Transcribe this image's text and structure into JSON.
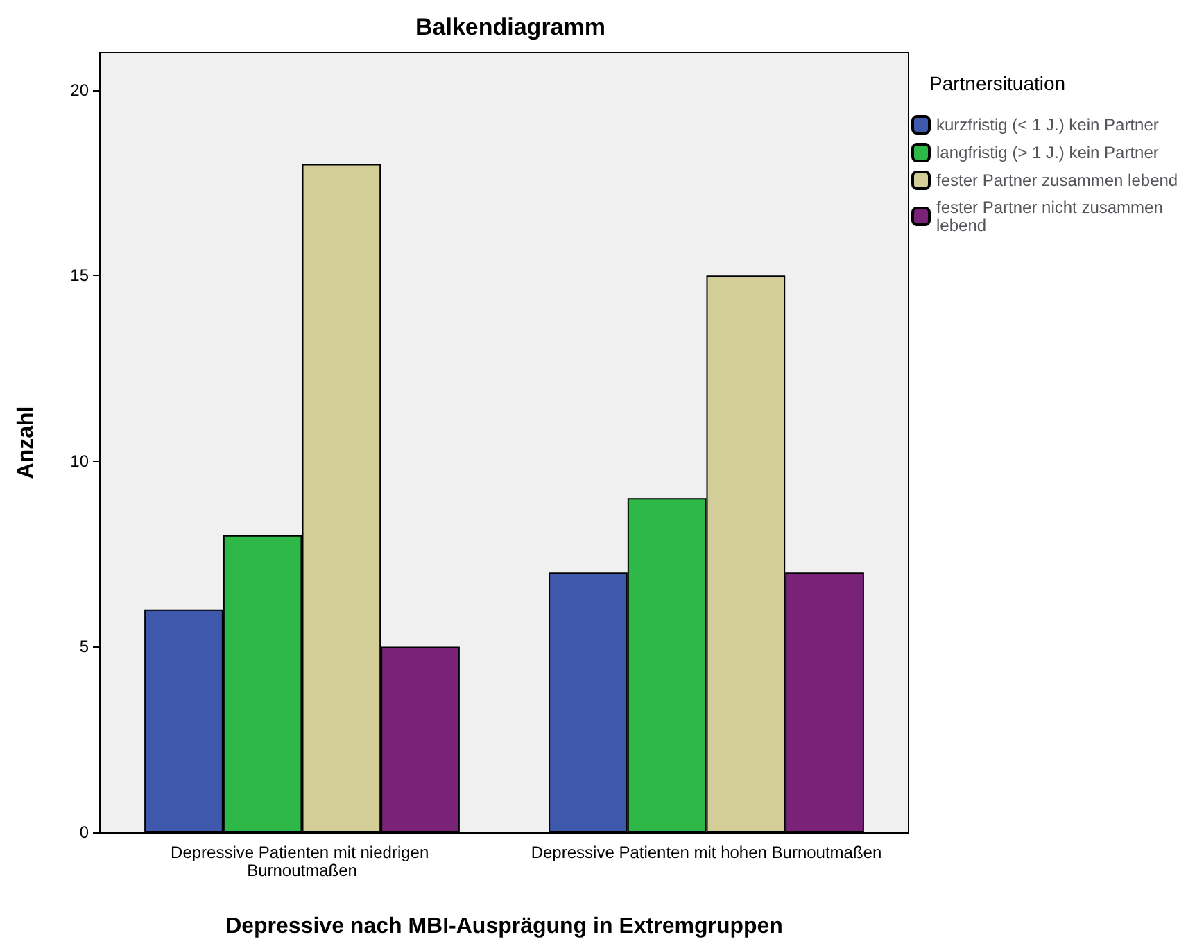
{
  "chart_data": {
    "type": "bar",
    "title": "Balkendiagramm",
    "xlabel": "Depressive nach MBI-Ausprägung in Extremgruppen",
    "ylabel": "Anzahl",
    "legend_title": "Partnersituation",
    "categories": [
      "Depressive Patienten mit niedrigen Burnoutmaßen",
      "Depressive Patienten mit hohen Burnoutmaßen"
    ],
    "series": [
      {
        "name": "kurzfristig (< 1 J.) kein Partner",
        "color": "#3e58ac",
        "values": [
          6,
          7
        ]
      },
      {
        "name": "langfristig (> 1 J.) kein Partner",
        "color": "#2eb848",
        "values": [
          8,
          9
        ]
      },
      {
        "name": "fester Partner zusammen lebend",
        "color": "#d3ce97",
        "values": [
          18,
          15
        ]
      },
      {
        "name": "fester Partner nicht zusammen lebend",
        "color": "#7a2277",
        "values": [
          5,
          7
        ]
      }
    ],
    "ylim": [
      0,
      21
    ],
    "yticks": [
      0,
      5,
      10,
      15,
      20
    ],
    "grid": false,
    "legend": "top right"
  }
}
